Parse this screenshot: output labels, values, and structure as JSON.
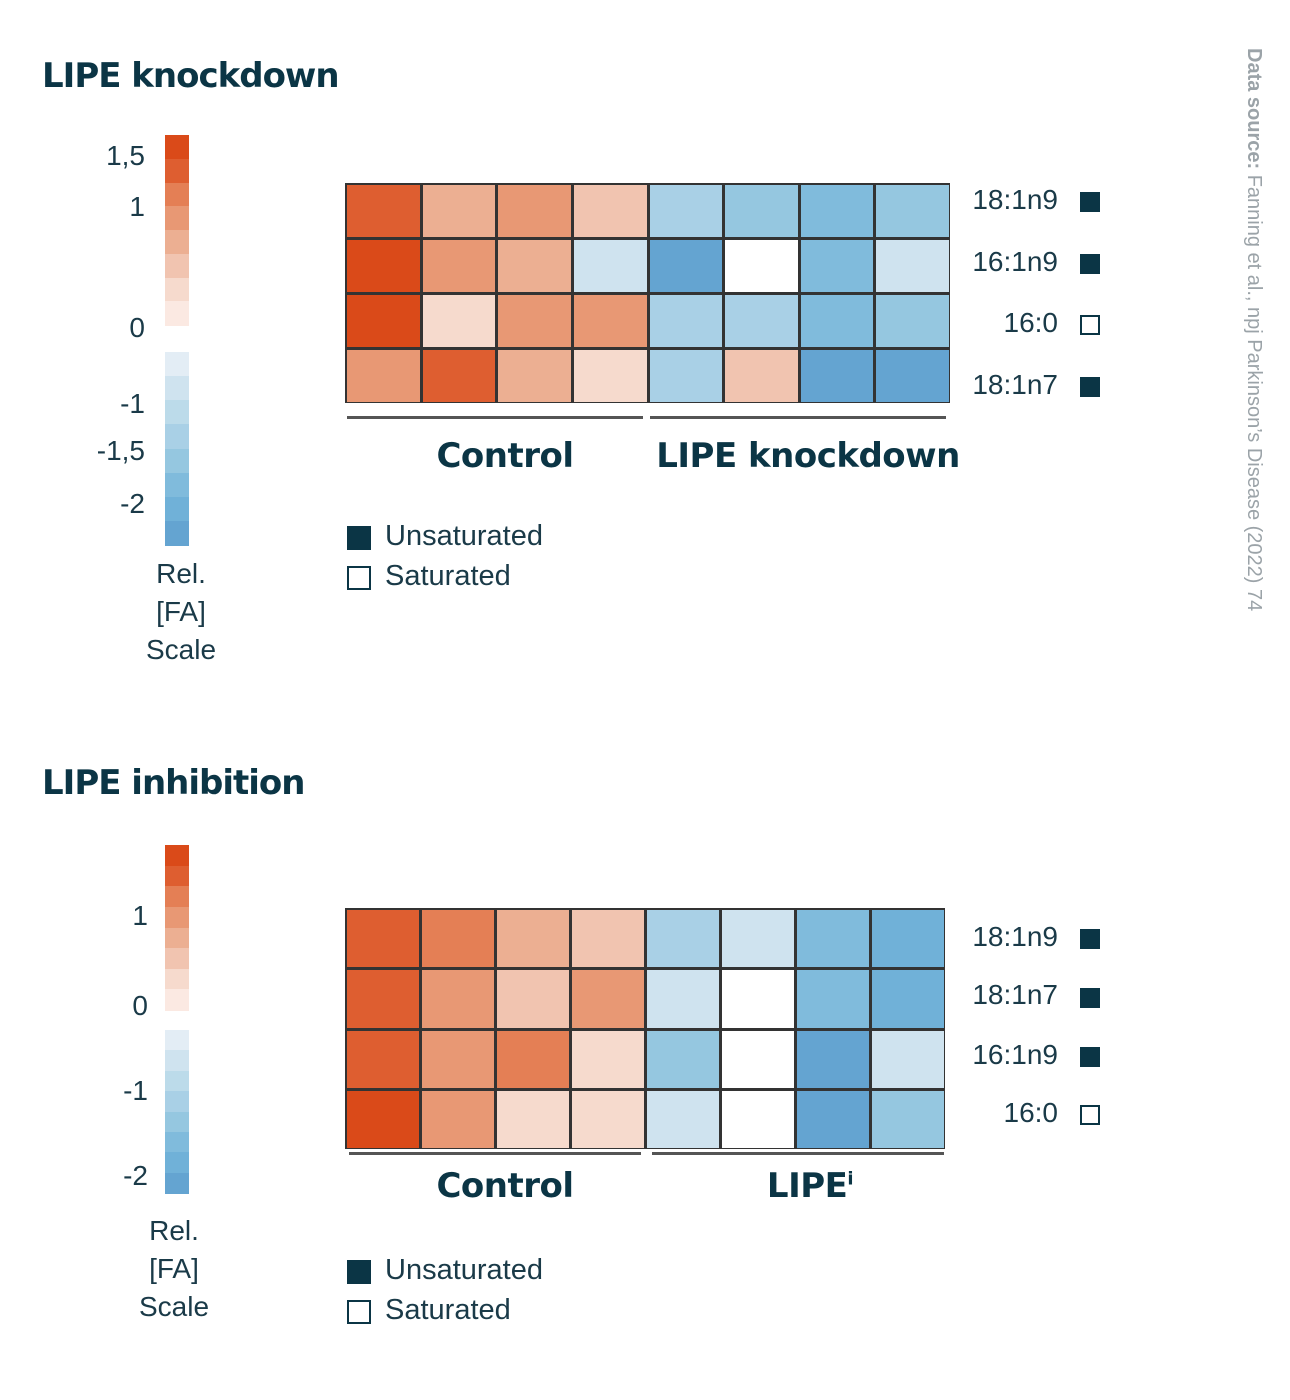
{
  "source": {
    "bold": "Data source:",
    "text": " Fanning et al., npj Parkinson’s Disease (2022) 74"
  },
  "legend": {
    "unsaturated": "Unsaturated",
    "saturated": "Saturated"
  },
  "colors": {
    "dark": "#0b3545",
    "reds": [
      "#fbe9e2",
      "#f6dacd",
      "#f1c4b0",
      "#ecaf92",
      "#e89874",
      "#e47f55",
      "#de5e30",
      "#da4a19"
    ],
    "blues": [
      "#e3edf5",
      "#cfe3ef",
      "#bcdbea",
      "#a9d0e6",
      "#95c7e0",
      "#80bbdc",
      "#70b1d8",
      "#64a4d1"
    ]
  },
  "chart_data": [
    {
      "type": "heatmap",
      "title": "LIPE knockdown",
      "scale_label": [
        "Rel.",
        "[FA]",
        "Scale"
      ],
      "scale_ticks": [
        "1,5",
        "1",
        "0",
        "-1",
        "-1,5",
        "-2"
      ],
      "scale_range": [
        -2.3,
        1.6
      ],
      "groups": [
        "Control",
        "LIPE knockdown"
      ],
      "group_sizes": [
        4,
        4
      ],
      "rows": [
        {
          "name": "18:1n9",
          "saturated": false
        },
        {
          "name": "16:1n9",
          "saturated": false
        },
        {
          "name": "16:0",
          "saturated": true
        },
        {
          "name": "18:1n7",
          "saturated": false
        }
      ],
      "values": [
        [
          1.25,
          0.6,
          0.9,
          0.35,
          -0.55,
          -0.85,
          -1.15,
          -0.9
        ],
        [
          1.5,
          0.95,
          0.7,
          -0.25,
          -1.5,
          0.0,
          -1.1,
          -0.2
        ],
        [
          1.5,
          0.2,
          0.95,
          0.75,
          -0.6,
          -0.6,
          -1.15,
          -0.95
        ],
        [
          0.95,
          1.2,
          0.7,
          0.25,
          -0.6,
          0.45,
          -1.4,
          -1.55
        ]
      ]
    },
    {
      "type": "heatmap",
      "title": "LIPE inhibition",
      "scale_label": [
        "Rel.",
        "[FA]",
        "Scale"
      ],
      "scale_ticks": [
        "1",
        "0",
        "-1",
        "-2"
      ],
      "scale_range": [
        -2.2,
        1.8
      ],
      "groups": [
        "Control",
        "LIPE"
      ],
      "group_superscripts": [
        "",
        "i"
      ],
      "group_sizes": [
        4,
        4
      ],
      "rows": [
        {
          "name": "18:1n9",
          "saturated": false
        },
        {
          "name": "18:1n7",
          "saturated": false
        },
        {
          "name": "16:1n9",
          "saturated": false
        },
        {
          "name": "16:0",
          "saturated": true
        }
      ],
      "values": [
        [
          1.2,
          1.05,
          0.7,
          0.4,
          -0.55,
          -0.2,
          -1.1,
          -1.25
        ],
        [
          1.3,
          0.75,
          0.45,
          0.8,
          -0.25,
          0.0,
          -1.15,
          -1.2
        ],
        [
          1.2,
          0.75,
          1.0,
          0.2,
          -0.9,
          0.0,
          -1.7,
          -0.25
        ],
        [
          1.65,
          0.75,
          0.2,
          0.2,
          -0.25,
          0.0,
          -1.5,
          -0.85
        ]
      ]
    }
  ]
}
